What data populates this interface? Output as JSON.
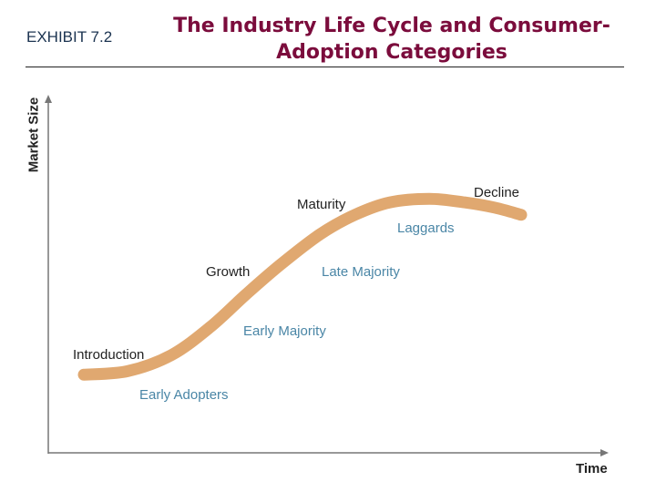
{
  "header": {
    "exhibit": "EXHIBIT 7.2",
    "title": "The Industry Life Cycle and Consumer-Adoption Categories"
  },
  "colors": {
    "title": "#7b0c3c",
    "exhibit": "#1b3350",
    "curve": "#e0a870",
    "stage_text": "#222222",
    "adopter_text": "#4a86a6",
    "axis": "#777777"
  },
  "axes": {
    "x_label": "Time",
    "y_label": "Market Size"
  },
  "stages": [
    {
      "id": "introduction",
      "label": "Introduction"
    },
    {
      "id": "growth",
      "label": "Growth"
    },
    {
      "id": "maturity",
      "label": "Maturity"
    },
    {
      "id": "decline",
      "label": "Decline"
    }
  ],
  "adopters": [
    {
      "id": "early-adopters",
      "label": "Early Adopters"
    },
    {
      "id": "early-majority",
      "label": "Early Majority"
    },
    {
      "id": "late-majority",
      "label": "Late Majority"
    },
    {
      "id": "laggards",
      "label": "Laggards"
    }
  ],
  "chart_data": {
    "type": "line",
    "title": "The Industry Life Cycle and Consumer-Adoption Categories",
    "xlabel": "Time",
    "ylabel": "Market Size",
    "x": [
      0,
      0.1,
      0.2,
      0.29,
      0.37,
      0.45,
      0.54,
      0.62,
      0.7,
      0.79,
      0.87,
      0.94,
      1.0
    ],
    "series": [
      {
        "name": "Industry life cycle",
        "values": [
          0.05,
          0.07,
          0.16,
          0.32,
          0.5,
          0.67,
          0.84,
          0.95,
          1.02,
          1.04,
          1.02,
          0.99,
          0.95
        ]
      }
    ],
    "annotations": [
      "Introduction",
      "Growth",
      "Maturity",
      "Decline",
      "Early Adopters",
      "Early Majority",
      "Late Majority",
      "Laggards"
    ],
    "grid": false,
    "legend": "none"
  }
}
